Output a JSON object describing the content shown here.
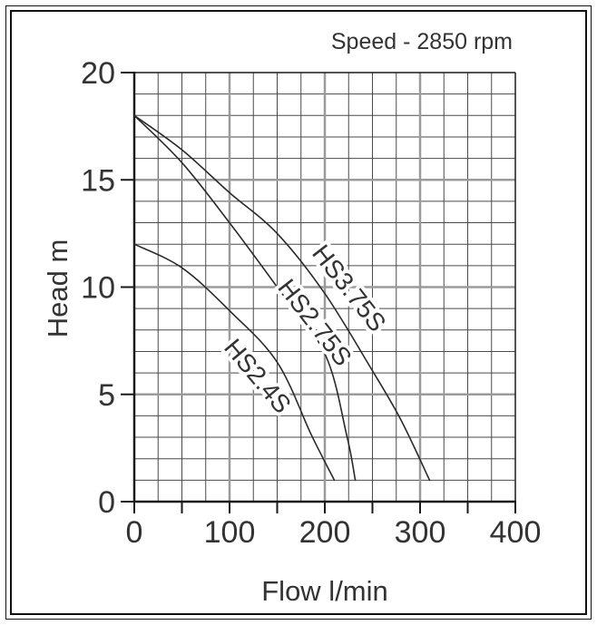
{
  "title": "Speed - 2850 rpm",
  "axes": {
    "x": {
      "label": "Flow l/min",
      "ticks": [
        0,
        100,
        200,
        300,
        400
      ],
      "tick_mark_step": 50
    },
    "y": {
      "label": "Head m",
      "ticks": [
        0,
        5,
        10,
        15,
        20
      ],
      "tick_mark_step": 5
    }
  },
  "chart_data": {
    "type": "line",
    "title": "Speed - 2850 rpm",
    "xlabel": "Flow l/min",
    "ylabel": "Head m",
    "xlim": [
      0,
      400
    ],
    "ylim": [
      0,
      20
    ],
    "grid": {
      "minor_x": 25,
      "major_x": 100,
      "minor_y": 1,
      "major_y": 5
    },
    "legend_position": "labels-on-curves",
    "series": [
      {
        "name": "HS3.75S",
        "points": [
          [
            0,
            18
          ],
          [
            50,
            16.4
          ],
          [
            100,
            14.4
          ],
          [
            150,
            12.5
          ],
          [
            200,
            9.7
          ],
          [
            250,
            6.1
          ],
          [
            280,
            3.8
          ],
          [
            310,
            1
          ]
        ],
        "label_at": [
          224,
          9.9
        ],
        "label_angle": 52
      },
      {
        "name": "HS2.75S",
        "points": [
          [
            0,
            18
          ],
          [
            50,
            15.8
          ],
          [
            100,
            13.0
          ],
          [
            150,
            10.0
          ],
          [
            200,
            6.9
          ],
          [
            223,
            3.1
          ],
          [
            232,
            1
          ]
        ],
        "label_at": [
          188,
          8.3
        ],
        "label_angle": 52
      },
      {
        "name": "HS2.4S",
        "points": [
          [
            0,
            12
          ],
          [
            50,
            10.9
          ],
          [
            100,
            8.9
          ],
          [
            150,
            6.5
          ],
          [
            186,
            3.1
          ],
          [
            210,
            1
          ]
        ],
        "label_at": [
          128,
          5.8
        ],
        "label_angle": 50
      }
    ]
  },
  "colors": {
    "background": "#ffffff",
    "frame": "#111111",
    "axis": "#1a1a1a",
    "grid_minor": "#4a4a4a",
    "grid_major": "#9b9b9b",
    "curve": "#2a2a2a",
    "text": "#333333"
  }
}
